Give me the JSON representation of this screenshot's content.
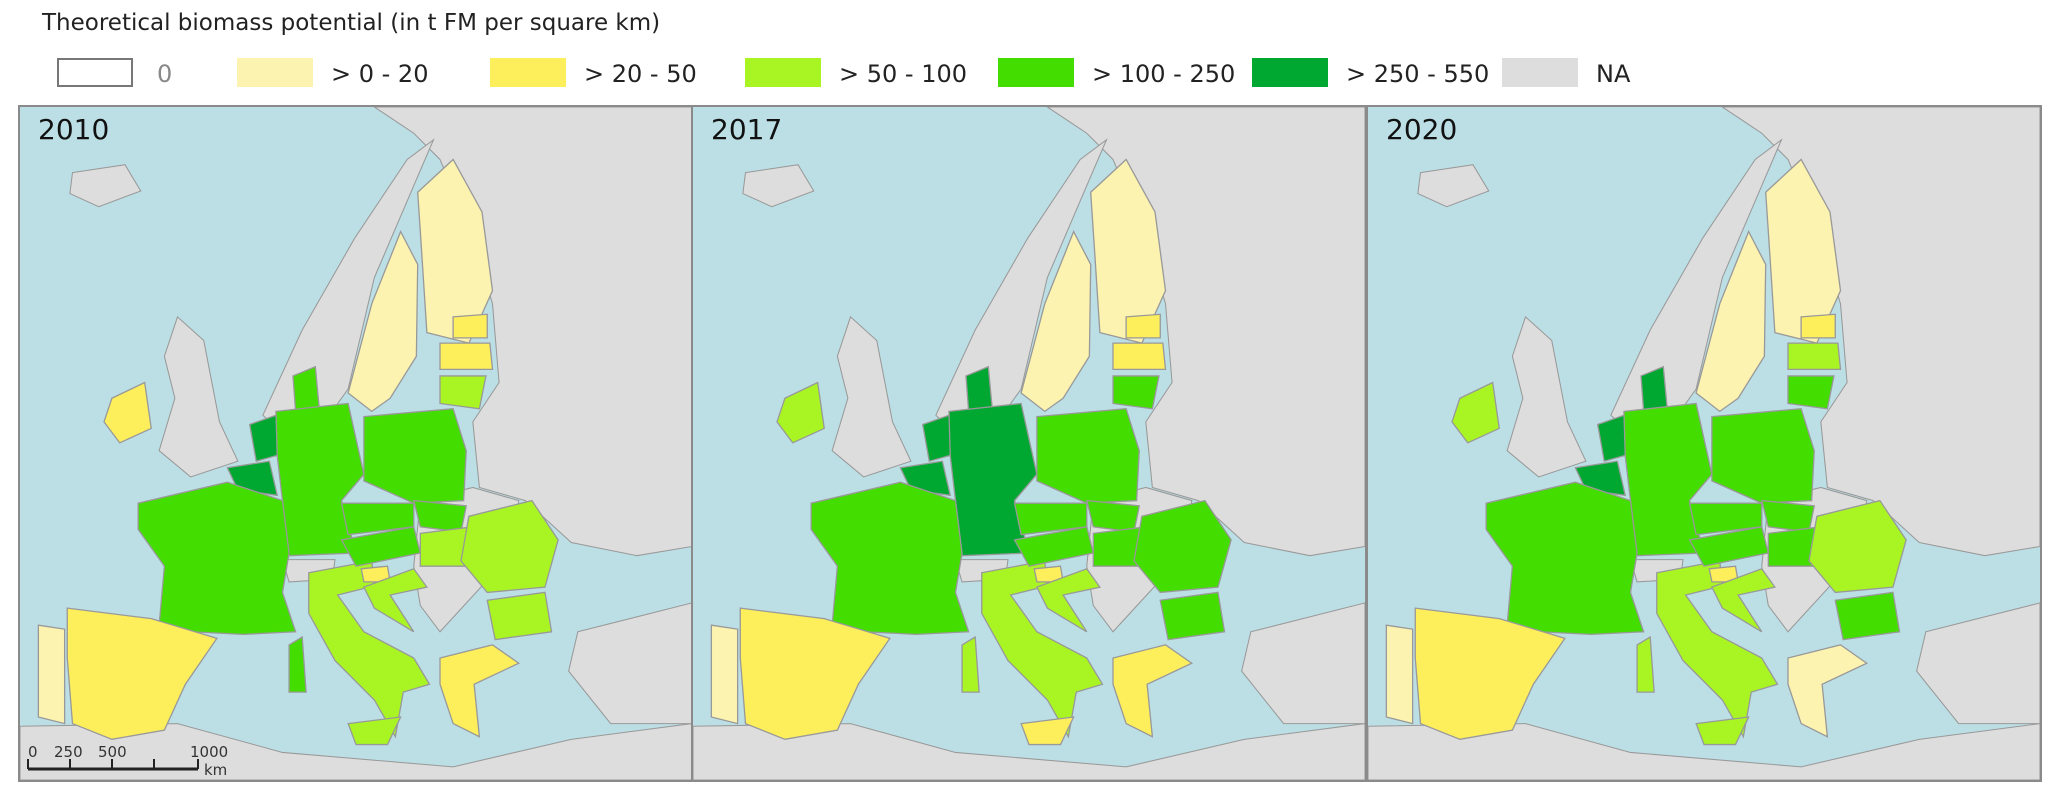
{
  "title": "Theoretical biomass potential (in t FM per square km)",
  "legend": [
    {
      "label": "0",
      "color": "#ffffff"
    },
    {
      "label": "> 0 - 20",
      "color": "#fdf3b0"
    },
    {
      "label": "> 20 - 50",
      "color": "#fdee5c"
    },
    {
      "label": "> 50 - 100",
      "color": "#a8f523"
    },
    {
      "label": "> 100 - 250",
      "color": "#44dd00"
    },
    {
      "label": "> 250 - 550",
      "color": "#00a832"
    },
    {
      "label": "NA",
      "color": "#dddddd"
    }
  ],
  "panels": [
    {
      "year": "2010"
    },
    {
      "year": "2017"
    },
    {
      "year": "2020"
    }
  ],
  "scale_bar": {
    "labels": [
      "0",
      "250",
      "500",
      "1000"
    ],
    "unit": "km"
  }
}
